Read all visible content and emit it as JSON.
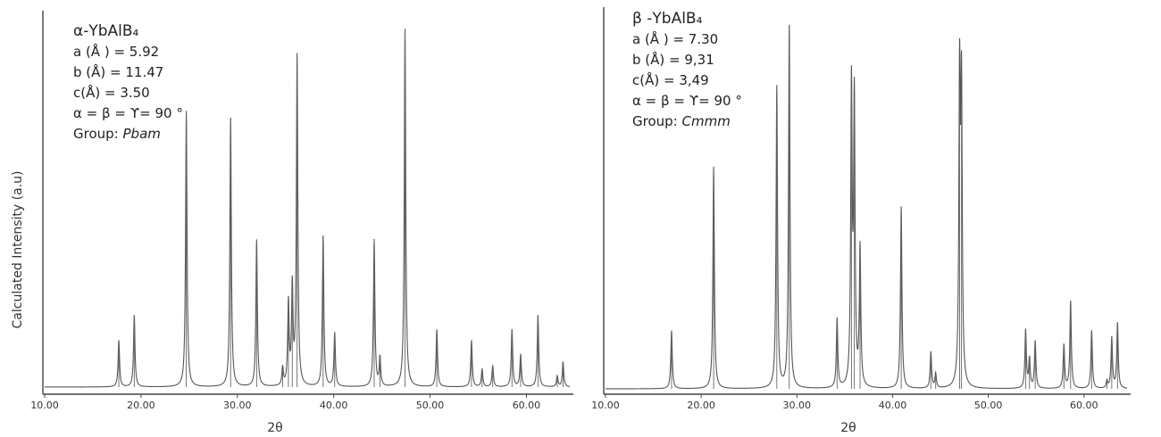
{
  "ylabel": "Calculated Intensity (a.u)",
  "chart_data": [
    {
      "type": "line",
      "title": "α-YbAlB₄",
      "xlabel": "2θ",
      "ylabel": "Calculated Intensity (a.u)",
      "xlim": [
        10,
        64.5
      ],
      "xticks": [
        "10.00",
        "20.00",
        "30.00",
        "40.00",
        "50.00",
        "60.00"
      ],
      "grid": false,
      "legend": "none",
      "lattice": {
        "a": "a (Å ) = 5.92",
        "b": "b (Å) = 11.47",
        "c": "c(Å) = 3.50",
        "angles": "α = β = ϒ= 90 °",
        "group_label": "Group:",
        "group": "Pbam"
      },
      "peaks": [
        {
          "x": 17.7,
          "y": 13
        },
        {
          "x": 19.3,
          "y": 20
        },
        {
          "x": 24.7,
          "y": 77
        },
        {
          "x": 29.3,
          "y": 75
        },
        {
          "x": 32.0,
          "y": 41
        },
        {
          "x": 34.7,
          "y": 5
        },
        {
          "x": 35.3,
          "y": 23
        },
        {
          "x": 35.7,
          "y": 27
        },
        {
          "x": 36.2,
          "y": 92
        },
        {
          "x": 38.9,
          "y": 42
        },
        {
          "x": 40.1,
          "y": 15
        },
        {
          "x": 44.2,
          "y": 41
        },
        {
          "x": 44.8,
          "y": 8
        },
        {
          "x": 47.4,
          "y": 100
        },
        {
          "x": 50.7,
          "y": 16
        },
        {
          "x": 54.3,
          "y": 13
        },
        {
          "x": 55.4,
          "y": 5
        },
        {
          "x": 56.5,
          "y": 6
        },
        {
          "x": 58.5,
          "y": 16
        },
        {
          "x": 59.4,
          "y": 9
        },
        {
          "x": 61.2,
          "y": 20
        },
        {
          "x": 63.2,
          "y": 3
        },
        {
          "x": 63.8,
          "y": 7
        }
      ]
    },
    {
      "type": "line",
      "title": "β -YbAlB₄",
      "xlabel": "2θ",
      "ylabel": "",
      "xlim": [
        10,
        64.5
      ],
      "xticks": [
        "10.00",
        "20.00",
        "30.00",
        "40.00",
        "50.00",
        "60.00"
      ],
      "grid": false,
      "legend": "none",
      "lattice": {
        "a": "a (Å ) = 7.30",
        "b": "b (Å) = 9,31",
        "c": "c(Å) = 3,49",
        "angles": "α = β = ϒ= 90 °",
        "group_label": "Group:",
        "group": "Cmmm"
      },
      "peaks": [
        {
          "x": 16.9,
          "y": 16
        },
        {
          "x": 21.3,
          "y": 61
        },
        {
          "x": 27.9,
          "y": 83
        },
        {
          "x": 29.2,
          "y": 100
        },
        {
          "x": 34.2,
          "y": 19
        },
        {
          "x": 35.7,
          "y": 82
        },
        {
          "x": 36.0,
          "y": 78
        },
        {
          "x": 36.6,
          "y": 38
        },
        {
          "x": 40.9,
          "y": 50
        },
        {
          "x": 44.0,
          "y": 10
        },
        {
          "x": 44.5,
          "y": 4
        },
        {
          "x": 47.0,
          "y": 83
        },
        {
          "x": 47.2,
          "y": 79
        },
        {
          "x": 53.9,
          "y": 16
        },
        {
          "x": 54.3,
          "y": 8
        },
        {
          "x": 54.9,
          "y": 13
        },
        {
          "x": 57.9,
          "y": 12
        },
        {
          "x": 58.6,
          "y": 24
        },
        {
          "x": 60.8,
          "y": 16
        },
        {
          "x": 62.4,
          "y": 2
        },
        {
          "x": 62.9,
          "y": 14
        },
        {
          "x": 63.5,
          "y": 18
        }
      ]
    }
  ]
}
